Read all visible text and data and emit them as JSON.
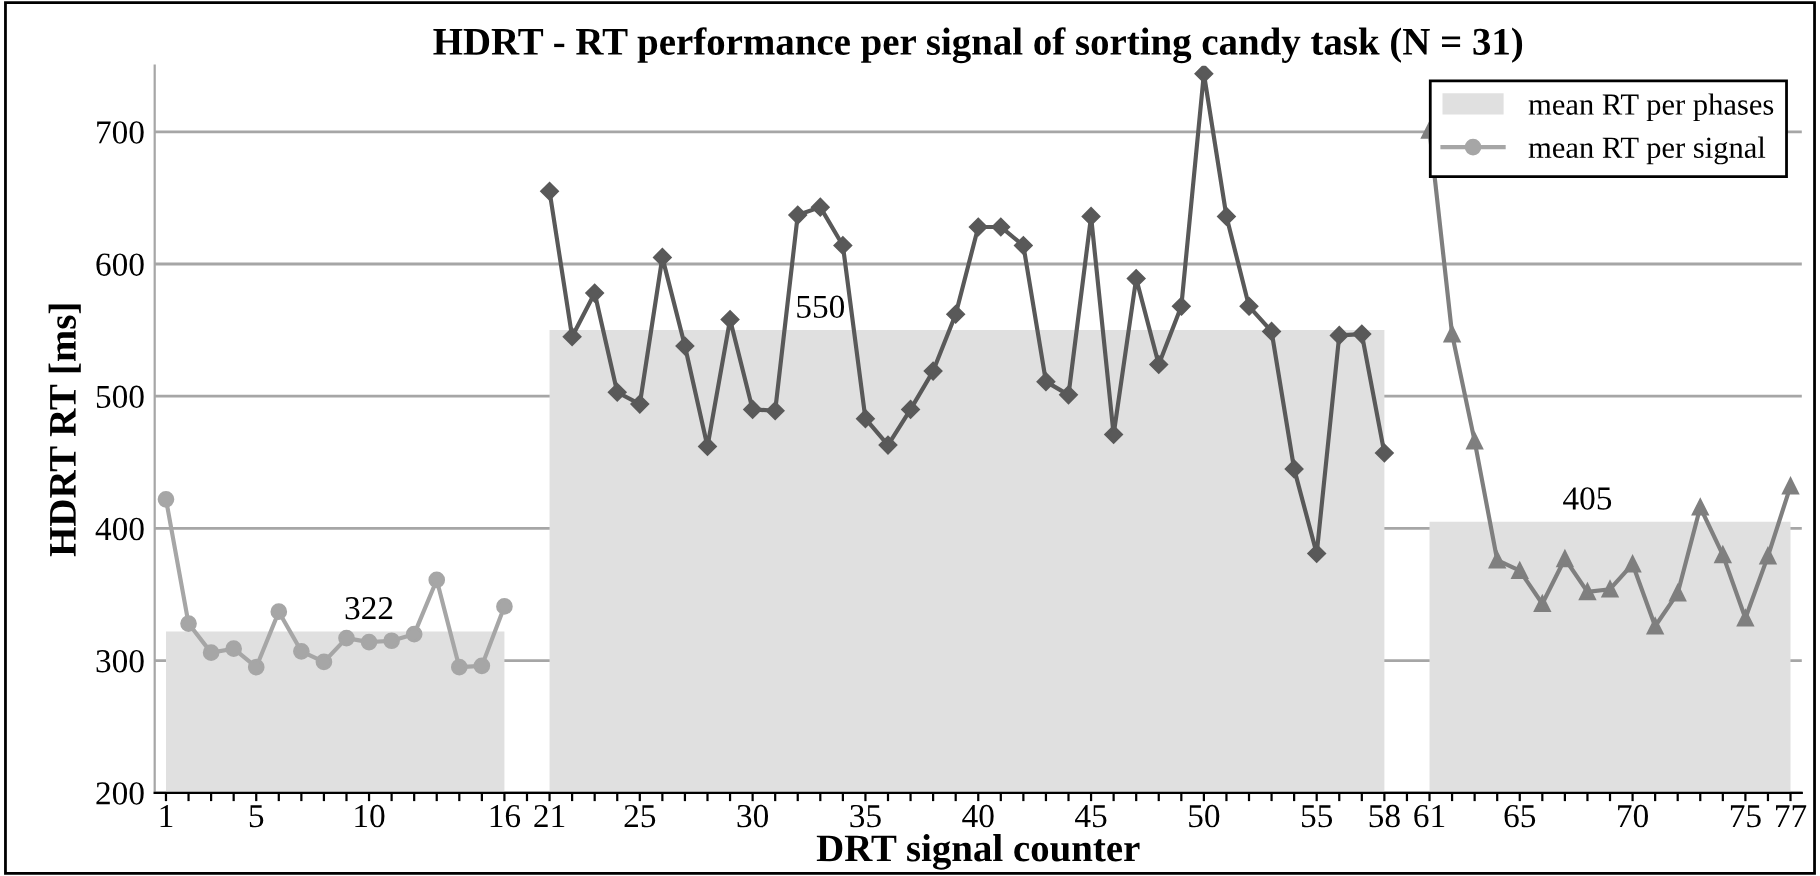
{
  "chart_data": {
    "type": "line",
    "title": "HDRT - RT performance per signal of sorting candy task (N = 31)",
    "xlabel": "DRT signal counter",
    "ylabel": "HDRT RT [ms]",
    "categories": [
      "1",
      null,
      null,
      null,
      "5",
      null,
      null,
      null,
      null,
      "10",
      null,
      null,
      null,
      null,
      null,
      "16",
      null,
      "21",
      null,
      null,
      null,
      "25",
      null,
      null,
      null,
      null,
      "30",
      null,
      null,
      null,
      null,
      "35",
      null,
      null,
      null,
      null,
      "40",
      null,
      null,
      null,
      null,
      "45",
      null,
      null,
      null,
      null,
      "50",
      null,
      null,
      null,
      null,
      "55",
      null,
      null,
      "58",
      null,
      "61",
      null,
      null,
      null,
      "65",
      null,
      null,
      null,
      null,
      "70",
      null,
      null,
      null,
      null,
      "75",
      null,
      "77"
    ],
    "series": [
      {
        "name": "mean RT per phases",
        "type": "area",
        "color": "#e0e0e0",
        "values": [
          322,
          322,
          322,
          322,
          322,
          322,
          322,
          322,
          322,
          322,
          322,
          322,
          322,
          322,
          322,
          322,
          null,
          550,
          550,
          550,
          550,
          550,
          550,
          550,
          550,
          550,
          550,
          550,
          550,
          550,
          550,
          550,
          550,
          550,
          550,
          550,
          550,
          550,
          550,
          550,
          550,
          550,
          550,
          550,
          550,
          550,
          550,
          550,
          550,
          550,
          550,
          550,
          550,
          550,
          550,
          null,
          405,
          405,
          405,
          405,
          405,
          405,
          405,
          405,
          405,
          405,
          405,
          405,
          405,
          405,
          405,
          405,
          405
        ],
        "value_labels": [
          null,
          null,
          null,
          null,
          null,
          null,
          null,
          null,
          null,
          "322",
          null,
          null,
          null,
          null,
          null,
          null,
          null,
          null,
          null,
          null,
          null,
          null,
          null,
          null,
          null,
          null,
          null,
          null,
          null,
          "550",
          null,
          null,
          null,
          null,
          null,
          null,
          null,
          null,
          null,
          null,
          null,
          null,
          null,
          null,
          null,
          null,
          null,
          null,
          null,
          null,
          null,
          null,
          null,
          null,
          null,
          null,
          null,
          null,
          null,
          null,
          null,
          null,
          null,
          "405",
          null,
          null,
          null,
          null,
          null,
          null,
          null,
          null,
          null
        ]
      },
      {
        "name": "mean RT per signal",
        "color": "#a6a6a6",
        "marker": "circle",
        "values": [
          422,
          328,
          306,
          309,
          295,
          337,
          307,
          299,
          317,
          314,
          315,
          320,
          361,
          295,
          296,
          341,
          null,
          null,
          null,
          null,
          null,
          null,
          null,
          null,
          null,
          null,
          null,
          null,
          null,
          null,
          null,
          null,
          null,
          null,
          null,
          null,
          null,
          null,
          null,
          null,
          null,
          null,
          null,
          null,
          null,
          null,
          null,
          null,
          null,
          null,
          null,
          null,
          null,
          null,
          null,
          null,
          null,
          null,
          null,
          null,
          null,
          null,
          null,
          null,
          null,
          null,
          null,
          null,
          null,
          null,
          null,
          null,
          null
        ]
      },
      {
        "color": "#595959",
        "marker": "diamond",
        "values": [
          null,
          null,
          null,
          null,
          null,
          null,
          null,
          null,
          null,
          null,
          null,
          null,
          null,
          null,
          null,
          null,
          null,
          655,
          545,
          578,
          503,
          494,
          605,
          538,
          462,
          558,
          490,
          489,
          637,
          643,
          614,
          483,
          463,
          490,
          519,
          562,
          628,
          628,
          614,
          511,
          501,
          636,
          471,
          589,
          524,
          568,
          744,
          636,
          568,
          549,
          445,
          381,
          546,
          547,
          457,
          null,
          null,
          null,
          null,
          null,
          null,
          null,
          null,
          null,
          null,
          null,
          null,
          null,
          null,
          null,
          null,
          null,
          null
        ]
      },
      {
        "color": "#7f7f7f",
        "marker": "triangle",
        "values": [
          null,
          null,
          null,
          null,
          null,
          null,
          null,
          null,
          null,
          null,
          null,
          null,
          null,
          null,
          null,
          null,
          null,
          null,
          null,
          null,
          null,
          null,
          null,
          null,
          null,
          null,
          null,
          null,
          null,
          null,
          null,
          null,
          null,
          null,
          null,
          null,
          null,
          null,
          null,
          null,
          null,
          null,
          null,
          null,
          null,
          null,
          null,
          null,
          null,
          null,
          null,
          null,
          null,
          null,
          null,
          null,
          701,
          547,
          466,
          376,
          368,
          343,
          377,
          352,
          354,
          373,
          326,
          351,
          416,
          380,
          332,
          379,
          432
        ]
      }
    ],
    "ylim": [
      200,
      750
    ],
    "yticks": [
      200,
      300,
      400,
      500,
      600,
      700
    ],
    "grid": "y",
    "legend": "top right"
  }
}
